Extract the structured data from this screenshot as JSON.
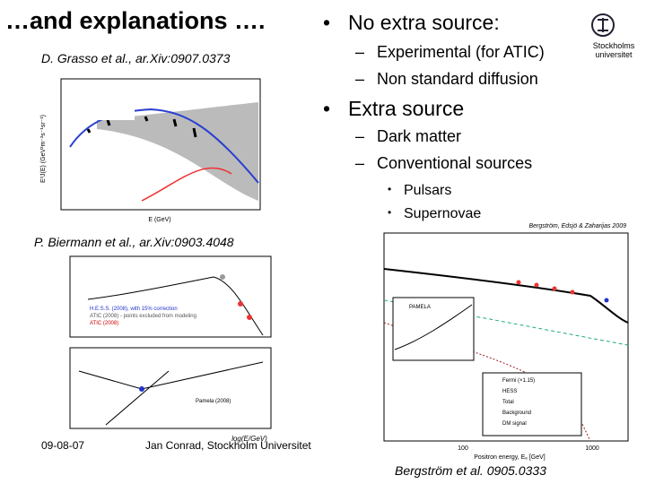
{
  "title": "…and explanations ….",
  "bullets": [
    {
      "text": "No extra source:",
      "sub": [
        {
          "text": "Experimental (for ATIC)"
        },
        {
          "text": "Non standard diffusion"
        }
      ]
    },
    {
      "text": "Extra source",
      "sub": [
        {
          "text": "Dark matter"
        },
        {
          "text": "Conventional sources",
          "sub": [
            "Pulsars",
            "Supernovae"
          ]
        }
      ]
    }
  ],
  "logo": {
    "line1": "Stockholms",
    "line2": "universitet"
  },
  "figures": [
    {
      "citation": "D. Grasso et al., ar.Xiv:0907.0373",
      "xlabel": "E (GeV)",
      "ylabel": "E³J(E) (GeV²m⁻²s⁻¹sr⁻¹)"
    },
    {
      "citation": "P. Biermann et al., ar.Xiv:0903.4048",
      "xlabel": "log(E/GeV)",
      "legend": [
        "H.E.S.S. (2008), with 15% correction",
        "ATIC (2008) - points excluded from modeling",
        "ATIC (2008)",
        "Pamela (2008)"
      ]
    },
    {
      "citation": "Bergström et al. 0905.0333",
      "header": "Bergström, Edsjö & Zaharijas 2009",
      "xlabel": "Positron energy, Eₑ [GeV]",
      "inset": "PAMELA",
      "legend": [
        "Fermi (×1.15)",
        "HESS",
        "Total",
        "Background",
        "DM signal"
      ],
      "xticks": [
        "100",
        "1000"
      ]
    }
  ],
  "footer": {
    "date": "09-08-07",
    "author": "Jan Conrad, Stockholm Universitet"
  }
}
